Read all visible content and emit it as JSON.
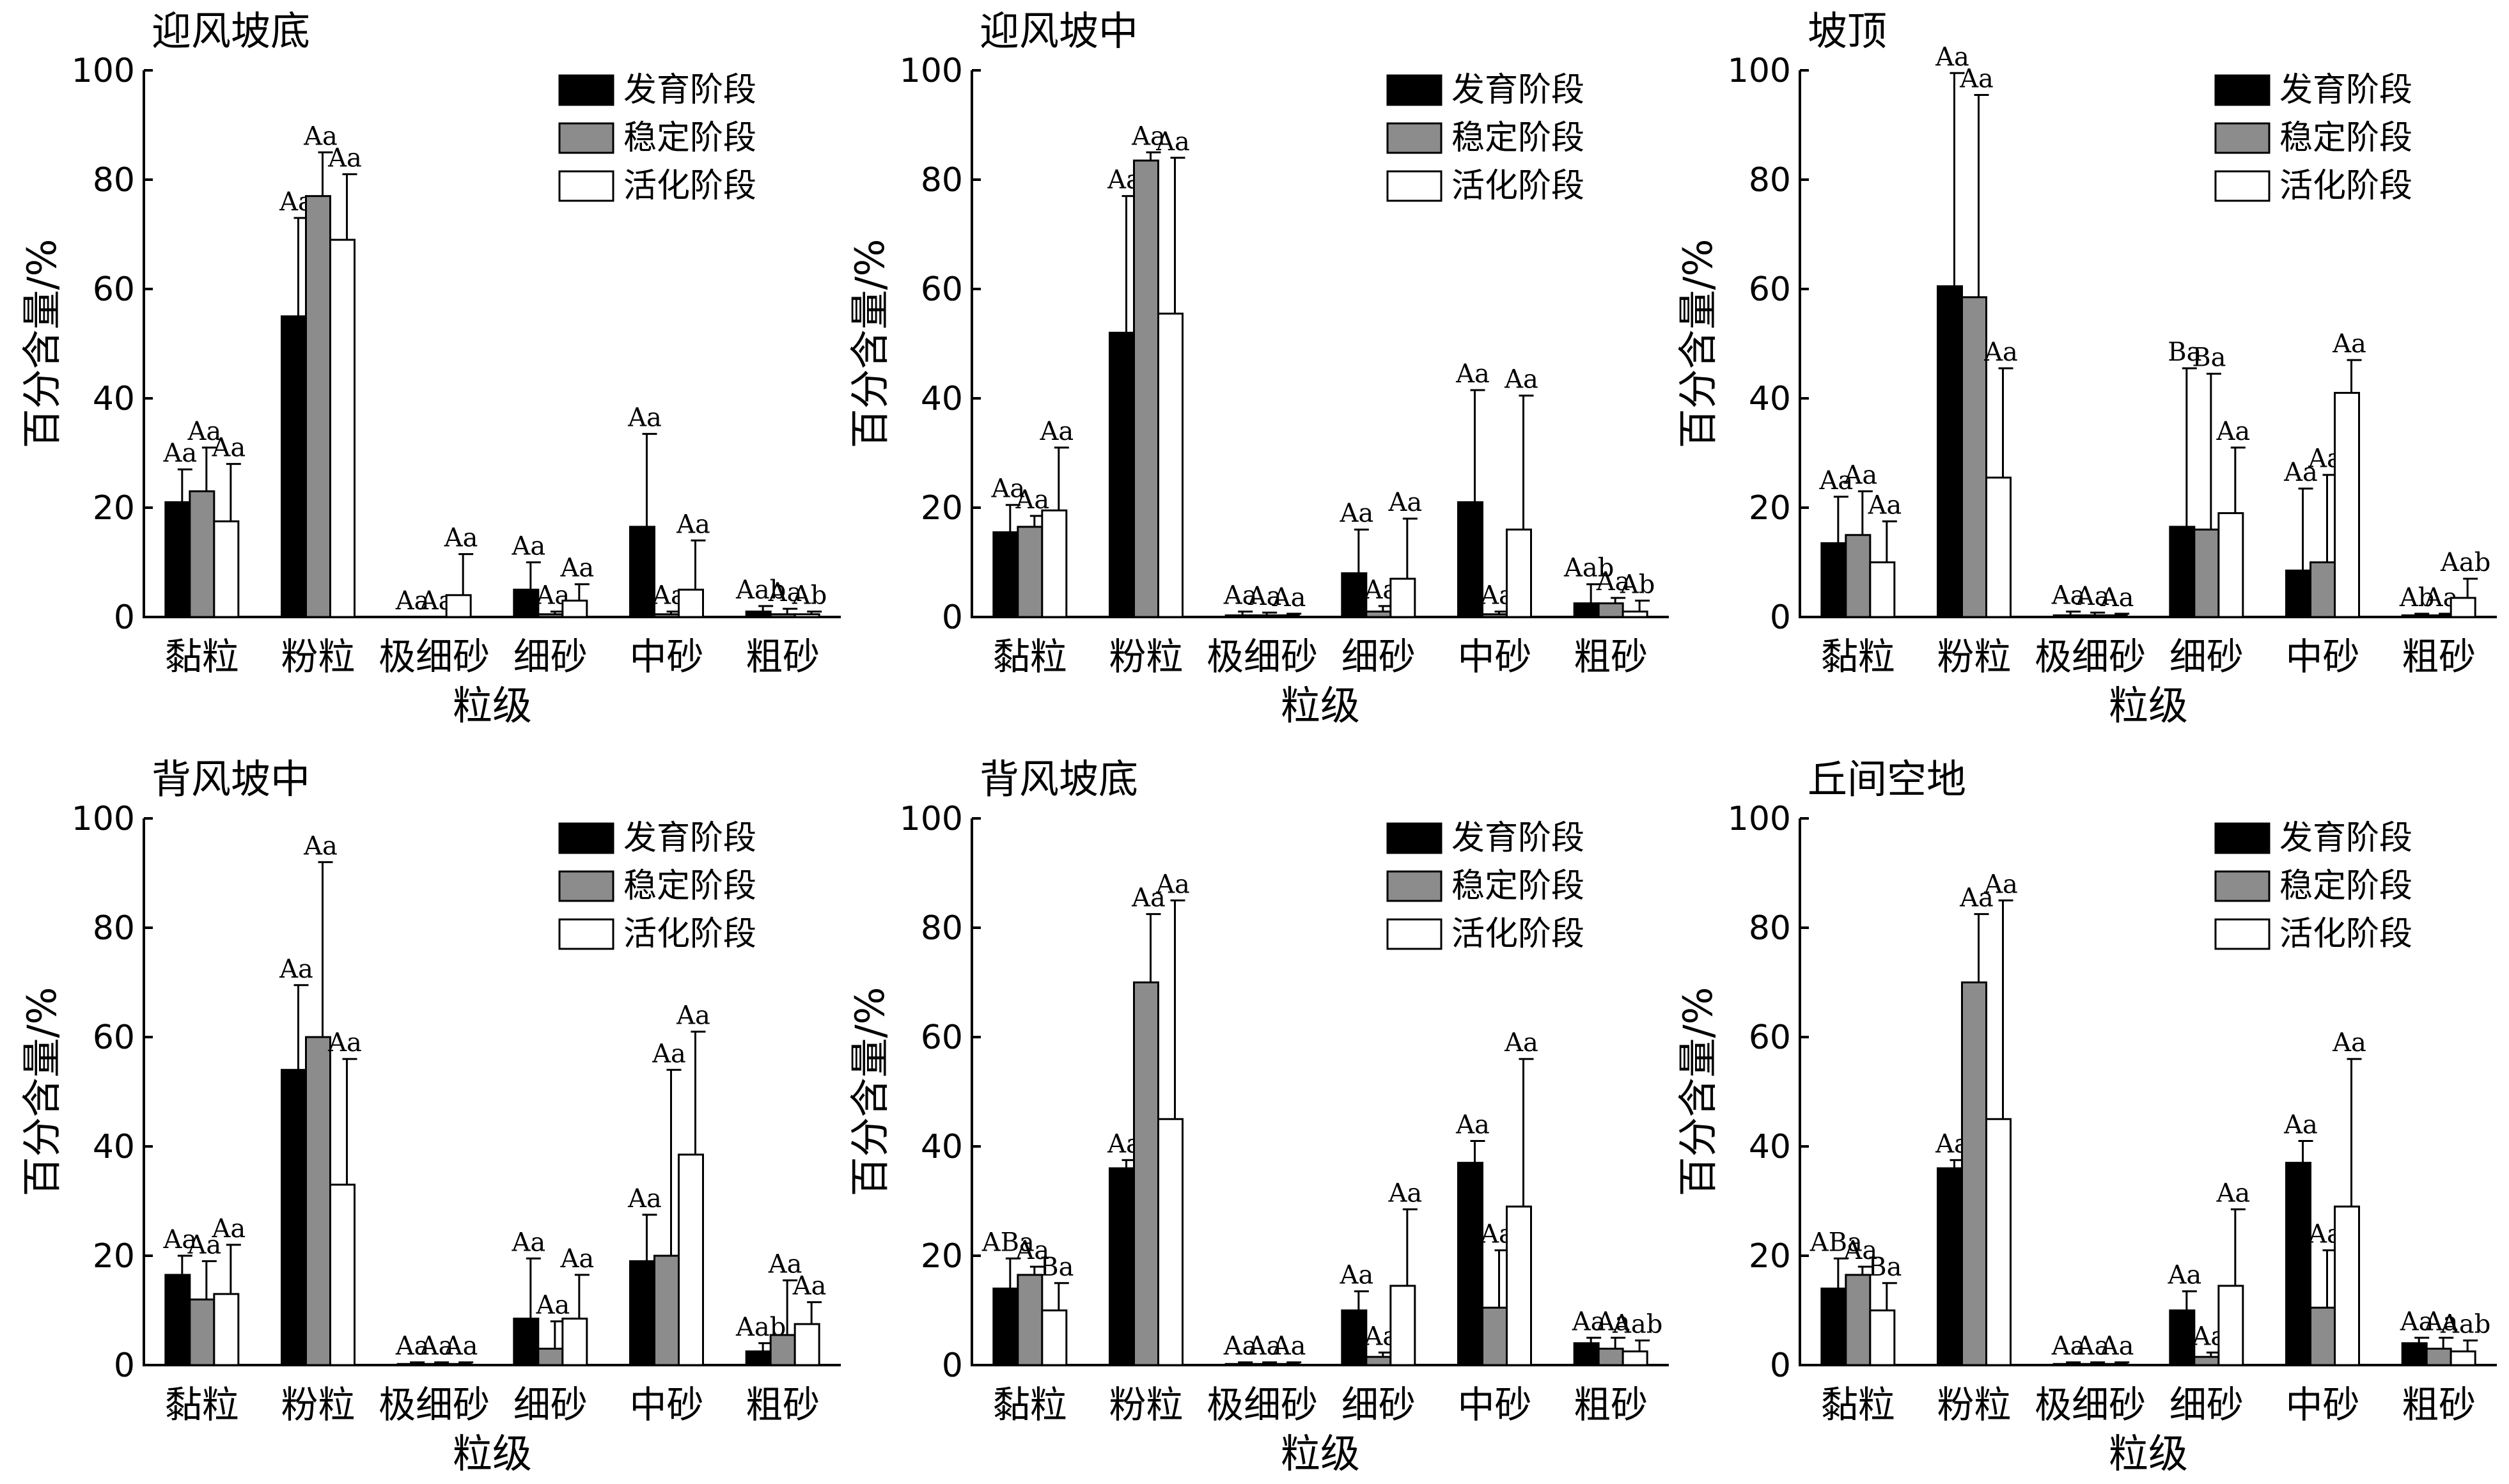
{
  "chart_data": [
    {
      "type": "bar",
      "title": "迎风坡底",
      "xlabel": "粒级",
      "ylabel": "百分含量/%",
      "ylim": [
        0,
        100
      ],
      "yticks": [
        "0",
        "20",
        "40",
        "60",
        "80",
        "100"
      ],
      "categories": [
        "黏粒",
        "粉粒",
        "极细砂",
        "细砂",
        "中砂",
        "粗砂"
      ],
      "legend_position": "top-right",
      "series": [
        {
          "name": "发育阶段",
          "color": "#000000",
          "values": [
            21,
            55,
            0,
            5,
            16.5,
            1
          ],
          "errors": [
            6,
            18,
            0,
            5,
            17,
            1
          ],
          "labels": [
            "Aa",
            "Aa",
            "Aa",
            "Aa",
            "Aa",
            "Aab"
          ]
        },
        {
          "name": "稳定阶段",
          "color": "#8c8c8c",
          "values": [
            23,
            77,
            0,
            0.5,
            0.5,
            0.5
          ],
          "errors": [
            8,
            8,
            0,
            0.5,
            0.5,
            1
          ],
          "labels": [
            "Aa",
            "Aa",
            "Aa",
            "Aa",
            "Aa",
            "Aa"
          ]
        },
        {
          "name": "活化阶段",
          "color": "#ffffff",
          "values": [
            17.5,
            69,
            4,
            3,
            5,
            0.5
          ],
          "errors": [
            10.5,
            12,
            7.5,
            3,
            9,
            0.5
          ],
          "labels": [
            "Aa",
            "Aa",
            "Aa",
            "Aa",
            "Aa",
            "Ab"
          ]
        }
      ]
    },
    {
      "type": "bar",
      "title": "迎风坡中",
      "xlabel": "粒级",
      "ylabel": "百分含量/%",
      "ylim": [
        0,
        100
      ],
      "yticks": [
        "0",
        "20",
        "40",
        "60",
        "80",
        "100"
      ],
      "categories": [
        "黏粒",
        "粉粒",
        "极细砂",
        "细砂",
        "中砂",
        "粗砂"
      ],
      "legend_position": "top-right",
      "series": [
        {
          "name": "发育阶段",
          "color": "#000000",
          "values": [
            15.5,
            52,
            0.3,
            8,
            21,
            2.5
          ],
          "errors": [
            5,
            25,
            0.7,
            8,
            20.5,
            3.5
          ],
          "labels": [
            "Aa",
            "Aa",
            "Aa",
            "Aa",
            "Aa",
            "Aab"
          ]
        },
        {
          "name": "稳定阶段",
          "color": "#8c8c8c",
          "values": [
            16.5,
            83.5,
            0.3,
            1,
            0.5,
            2.5
          ],
          "errors": [
            2,
            1.5,
            0.5,
            1,
            0.5,
            1
          ],
          "labels": [
            "Aa",
            "Aa",
            "Aa",
            "Aa",
            "Aa",
            "Aa"
          ]
        },
        {
          "name": "活化阶段",
          "color": "#ffffff",
          "values": [
            19.5,
            55.5,
            0.3,
            7,
            16,
            1
          ],
          "errors": [
            11.5,
            28.5,
            0.3,
            11,
            24.5,
            2
          ],
          "labels": [
            "Aa",
            "Aa",
            "Aa",
            "Aa",
            "Aa",
            "Ab"
          ]
        }
      ]
    },
    {
      "type": "bar",
      "title": "坡顶",
      "xlabel": "粒级",
      "ylabel": "百分含量/%",
      "ylim": [
        0,
        100
      ],
      "yticks": [
        "0",
        "20",
        "40",
        "60",
        "80",
        "100"
      ],
      "categories": [
        "黏粒",
        "粉粒",
        "极细砂",
        "细砂",
        "中砂",
        "粗砂"
      ],
      "legend_position": "top-right",
      "series": [
        {
          "name": "发育阶段",
          "color": "#000000",
          "values": [
            13.5,
            60.5,
            0.3,
            16.5,
            8.5,
            0.3
          ],
          "errors": [
            8.5,
            39,
            0.7,
            29,
            15,
            0.3
          ],
          "labels": [
            "Aa",
            "Aa",
            "Aa",
            "Ba",
            "Aa",
            "Ab"
          ]
        },
        {
          "name": "稳定阶段",
          "color": "#8c8c8c",
          "values": [
            15,
            58.5,
            0.3,
            16,
            10,
            0.3
          ],
          "errors": [
            8,
            37,
            0.5,
            28.5,
            16,
            0.3
          ],
          "labels": [
            "Aa",
            "Aa",
            "Aa",
            "Ba",
            "Aa",
            "Aa"
          ]
        },
        {
          "name": "活化阶段",
          "color": "#ffffff",
          "values": [
            10,
            25.5,
            0.3,
            19,
            41,
            3.5
          ],
          "errors": [
            7.5,
            20,
            0.3,
            12,
            6,
            3.5
          ],
          "labels": [
            "Aa",
            "Aa",
            "Aa",
            "Aa",
            "Aa",
            "Aab"
          ]
        }
      ]
    },
    {
      "type": "bar",
      "title": "背风坡中",
      "xlabel": "粒级",
      "ylabel": "百分含量/%",
      "ylim": [
        0,
        100
      ],
      "yticks": [
        "0",
        "20",
        "40",
        "60",
        "80",
        "100"
      ],
      "categories": [
        "黏粒",
        "粉粒",
        "极细砂",
        "细砂",
        "中砂",
        "粗砂"
      ],
      "legend_position": "top-right",
      "series": [
        {
          "name": "发育阶段",
          "color": "#000000",
          "values": [
            16.5,
            54,
            0.2,
            8.5,
            19,
            2.5
          ],
          "errors": [
            3.5,
            15.5,
            0.3,
            11,
            8.5,
            1.5
          ],
          "labels": [
            "Aa",
            "Aa",
            "Aa",
            "Aa",
            "Aa",
            "Aab"
          ]
        },
        {
          "name": "稳定阶段",
          "color": "#8c8c8c",
          "values": [
            12,
            60,
            0.2,
            3,
            20,
            5.5
          ],
          "errors": [
            7,
            32,
            0.3,
            5,
            34,
            10
          ],
          "labels": [
            "Aa",
            "Aa",
            "Aa",
            "Aa",
            "Aa",
            "Aa"
          ]
        },
        {
          "name": "活化阶段",
          "color": "#ffffff",
          "values": [
            13,
            33,
            0.2,
            8.5,
            38.5,
            7.5
          ],
          "errors": [
            9,
            23,
            0.3,
            8,
            22.5,
            4
          ],
          "labels": [
            "Aa",
            "Aa",
            "Aa",
            "Aa",
            "Aa",
            "Aa"
          ]
        }
      ]
    },
    {
      "type": "bar",
      "title": "背风坡底",
      "xlabel": "粒级",
      "ylabel": "百分含量/%",
      "ylim": [
        0,
        100
      ],
      "yticks": [
        "0",
        "20",
        "40",
        "60",
        "80",
        "100"
      ],
      "categories": [
        "黏粒",
        "粉粒",
        "极细砂",
        "细砂",
        "中砂",
        "粗砂"
      ],
      "legend_position": "top-right",
      "series": [
        {
          "name": "发育阶段",
          "color": "#000000",
          "values": [
            14,
            36,
            0.2,
            10,
            37,
            4
          ],
          "errors": [
            5.5,
            1.5,
            0.3,
            3.5,
            4,
            1
          ],
          "labels": [
            "ABa",
            "Aa",
            "Aa",
            "Aa",
            "Aa",
            "Aa"
          ]
        },
        {
          "name": "稳定阶段",
          "color": "#8c8c8c",
          "values": [
            16.5,
            70,
            0.2,
            1.5,
            10.5,
            3
          ],
          "errors": [
            1.5,
            12.5,
            0.3,
            0.8,
            10.5,
            2
          ],
          "labels": [
            "Aa",
            "Aa",
            "Aa",
            "Aa",
            "Aa",
            "Aa"
          ]
        },
        {
          "name": "活化阶段",
          "color": "#ffffff",
          "values": [
            10,
            45,
            0.2,
            14.5,
            29,
            2.5
          ],
          "errors": [
            5,
            40,
            0.3,
            14,
            27,
            2
          ],
          "labels": [
            "Ba",
            "Aa",
            "Aa",
            "Aa",
            "Aa",
            "Aab"
          ]
        }
      ]
    },
    {
      "type": "bar",
      "title": "丘间空地",
      "xlabel": "粒级",
      "ylabel": "百分含量/%",
      "ylim": [
        0,
        100
      ],
      "yticks": [
        "0",
        "20",
        "40",
        "60",
        "80",
        "100"
      ],
      "categories": [
        "黏粒",
        "粉粒",
        "极细砂",
        "细砂",
        "中砂",
        "粗砂"
      ],
      "legend_position": "top-right",
      "series": [
        {
          "name": "发育阶段",
          "color": "#000000",
          "values": [
            14,
            36,
            0.2,
            10,
            37,
            4
          ],
          "errors": [
            5.5,
            1.5,
            0.3,
            3.5,
            4,
            1
          ],
          "labels": [
            "ABa",
            "Aa",
            "Aa",
            "Aa",
            "Aa",
            "Aa"
          ]
        },
        {
          "name": "稳定阶段",
          "color": "#8c8c8c",
          "values": [
            16.5,
            70,
            0.2,
            1.5,
            10.5,
            3
          ],
          "errors": [
            1.5,
            12.5,
            0.3,
            0.8,
            10.5,
            2
          ],
          "labels": [
            "Aa",
            "Aa",
            "Aa",
            "Aa",
            "Aa",
            "Aa"
          ]
        },
        {
          "name": "活化阶段",
          "color": "#ffffff",
          "values": [
            10,
            45,
            0.2,
            14.5,
            29,
            2.5
          ],
          "errors": [
            5,
            40,
            0.3,
            14,
            27,
            2
          ],
          "labels": [
            "Ba",
            "Aa",
            "Aa",
            "Aa",
            "Aa",
            "Aab"
          ]
        }
      ]
    }
  ]
}
